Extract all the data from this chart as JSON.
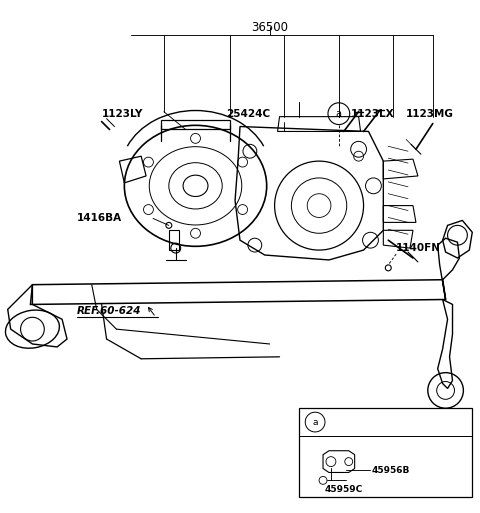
{
  "bg_color": "#ffffff",
  "line_color": "#000000",
  "part_number_top": "36500",
  "label_1123LY": "1123LY",
  "label_25424C": "25424C",
  "label_1123LX": "1123LX",
  "label_1123MG": "1123MG",
  "label_1416BA": "1416BA",
  "label_1140FN": "1140FN",
  "label_ref": "REF.60-624",
  "label_45959C": "45959C",
  "label_45956B": "45956B",
  "figsize": [
    4.8,
    5.13
  ],
  "dpi": 100
}
